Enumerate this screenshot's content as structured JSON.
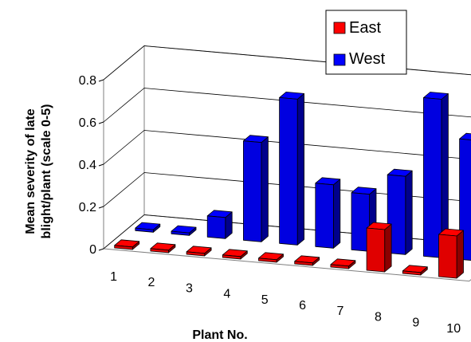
{
  "chart_data": {
    "type": "bar",
    "subtype": "3d-clustered-depth",
    "title": "",
    "xlabel": "Plant No.",
    "ylabel": "Mean severity of late blight/plant (scale 0-5)",
    "ylim": [
      0,
      0.8
    ],
    "yticks": [
      "0",
      "0.2",
      "0.4",
      "0.6",
      "0.8"
    ],
    "grid": true,
    "legend_position": "top-right",
    "categories": [
      "1",
      "2",
      "3",
      "4",
      "5",
      "6",
      "7",
      "8",
      "9",
      "10"
    ],
    "series": [
      {
        "name": "East",
        "color": "#ff0000",
        "values": [
          0,
          0,
          0,
          0,
          0,
          0,
          0,
          0.2,
          0,
          0.2
        ]
      },
      {
        "name": "West",
        "color": "#0000ff",
        "values": [
          0,
          0,
          0.1,
          0.47,
          0.69,
          0.3,
          0.27,
          0.37,
          0.75,
          0.57
        ]
      }
    ]
  }
}
